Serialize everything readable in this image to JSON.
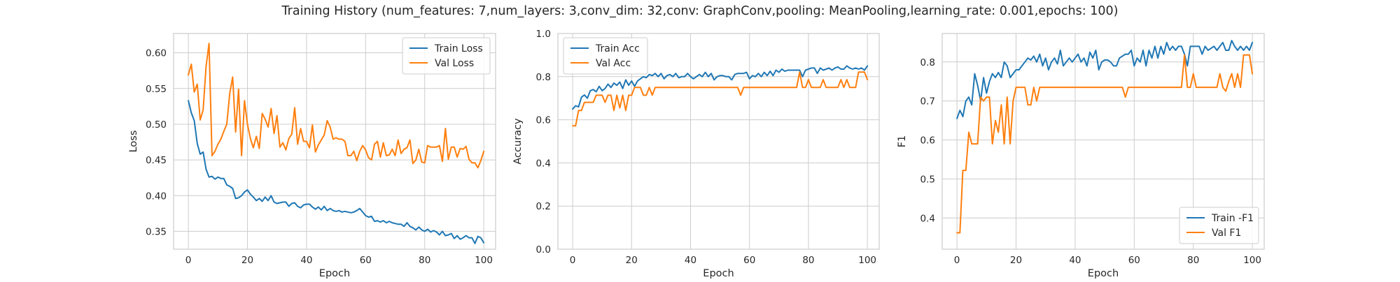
{
  "figure": {
    "title": "Training History (num_features: 7,num_layers: 3,conv_dim: 32,conv: GraphConv,pooling: MeanPooling,learning_rate: 0.001,epochs: 100)"
  },
  "colors": {
    "train": "#1f77b4",
    "val": "#ff7f0e",
    "grid": "#cccccc",
    "axes_edge": "#cccccc"
  },
  "chart_data": [
    {
      "type": "line",
      "xlabel": "Epoch",
      "ylabel": "Loss",
      "xlim": [
        -5,
        104
      ],
      "ylim": [
        0.325,
        0.627
      ],
      "xticks": [
        0,
        20,
        40,
        60,
        80,
        100
      ],
      "yticks": [
        0.35,
        0.4,
        0.45,
        0.5,
        0.55,
        0.6
      ],
      "ytick_labels": [
        "0.35",
        "0.40",
        "0.45",
        "0.50",
        "0.55",
        "0.60"
      ],
      "grid": true,
      "legend_loc": "upper-right",
      "series": [
        {
          "name": "Train Loss",
          "color": "#1f77b4",
          "values": [
            0.533,
            0.516,
            0.505,
            0.473,
            0.458,
            0.461,
            0.437,
            0.426,
            0.427,
            0.423,
            0.426,
            0.424,
            0.424,
            0.415,
            0.413,
            0.41,
            0.396,
            0.397,
            0.4,
            0.405,
            0.408,
            0.402,
            0.398,
            0.393,
            0.396,
            0.392,
            0.398,
            0.393,
            0.4,
            0.391,
            0.389,
            0.39,
            0.391,
            0.391,
            0.385,
            0.389,
            0.39,
            0.385,
            0.383,
            0.387,
            0.388,
            0.388,
            0.384,
            0.381,
            0.384,
            0.38,
            0.385,
            0.379,
            0.382,
            0.379,
            0.378,
            0.379,
            0.377,
            0.378,
            0.377,
            0.376,
            0.377,
            0.379,
            0.382,
            0.377,
            0.372,
            0.37,
            0.371,
            0.364,
            0.365,
            0.363,
            0.365,
            0.362,
            0.364,
            0.362,
            0.361,
            0.36,
            0.36,
            0.357,
            0.362,
            0.357,
            0.355,
            0.352,
            0.356,
            0.352,
            0.35,
            0.353,
            0.349,
            0.351,
            0.349,
            0.345,
            0.35,
            0.344,
            0.345,
            0.347,
            0.34,
            0.344,
            0.339,
            0.341,
            0.344,
            0.341,
            0.341,
            0.333,
            0.343,
            0.341,
            0.334
          ]
        },
        {
          "name": "Val Loss",
          "color": "#ff7f0e",
          "values": [
            0.569,
            0.584,
            0.545,
            0.556,
            0.506,
            0.52,
            0.581,
            0.613,
            0.456,
            0.462,
            0.472,
            0.479,
            0.49,
            0.5,
            0.543,
            0.566,
            0.489,
            0.549,
            0.456,
            0.533,
            0.5,
            0.48,
            0.467,
            0.483,
            0.466,
            0.515,
            0.507,
            0.496,
            0.522,
            0.487,
            0.512,
            0.468,
            0.474,
            0.464,
            0.48,
            0.486,
            0.523,
            0.472,
            0.494,
            0.476,
            0.476,
            0.467,
            0.499,
            0.461,
            0.471,
            0.478,
            0.485,
            0.505,
            0.496,
            0.479,
            0.481,
            0.479,
            0.479,
            0.476,
            0.456,
            0.456,
            0.462,
            0.449,
            0.462,
            0.47,
            0.464,
            0.453,
            0.45,
            0.472,
            0.476,
            0.454,
            0.474,
            0.456,
            0.457,
            0.465,
            0.456,
            0.478,
            0.459,
            0.465,
            0.467,
            0.478,
            0.445,
            0.45,
            0.465,
            0.447,
            0.446,
            0.47,
            0.468,
            0.468,
            0.468,
            0.47,
            0.448,
            0.494,
            0.451,
            0.468,
            0.468,
            0.454,
            0.466,
            0.465,
            0.469,
            0.451,
            0.446,
            0.446,
            0.439,
            0.449,
            0.462
          ]
        }
      ]
    },
    {
      "type": "line",
      "xlabel": "Epoch",
      "ylabel": "Accuracy",
      "xlim": [
        -5,
        104
      ],
      "ylim": [
        0.0,
        1.0
      ],
      "xticks": [
        0,
        20,
        40,
        60,
        80,
        100
      ],
      "yticks": [
        0.0,
        0.2,
        0.4,
        0.6,
        0.8,
        1.0
      ],
      "ytick_labels": [
        "0.0",
        "0.2",
        "0.4",
        "0.6",
        "0.8",
        "1.0"
      ],
      "grid": true,
      "legend_loc": "upper-left",
      "series": [
        {
          "name": "Train Acc",
          "color": "#1f77b4",
          "values": [
            0.65,
            0.665,
            0.66,
            0.705,
            0.715,
            0.7,
            0.735,
            0.74,
            0.73,
            0.755,
            0.735,
            0.745,
            0.765,
            0.75,
            0.77,
            0.76,
            0.775,
            0.745,
            0.785,
            0.76,
            0.78,
            0.755,
            0.78,
            0.79,
            0.8,
            0.795,
            0.81,
            0.805,
            0.815,
            0.8,
            0.815,
            0.79,
            0.805,
            0.81,
            0.8,
            0.815,
            0.795,
            0.8,
            0.8,
            0.815,
            0.8,
            0.79,
            0.8,
            0.81,
            0.8,
            0.82,
            0.8,
            0.815,
            0.785,
            0.8,
            0.805,
            0.805,
            0.8,
            0.8,
            0.785,
            0.81,
            0.815,
            0.815,
            0.815,
            0.82,
            0.79,
            0.805,
            0.8,
            0.815,
            0.8,
            0.82,
            0.805,
            0.825,
            0.805,
            0.83,
            0.82,
            0.835,
            0.825,
            0.83,
            0.83,
            0.83,
            0.83,
            0.83,
            0.8,
            0.83,
            0.835,
            0.84,
            0.84,
            0.815,
            0.84,
            0.83,
            0.835,
            0.84,
            0.83,
            0.84,
            0.845,
            0.835,
            0.835,
            0.85,
            0.84,
            0.835,
            0.84,
            0.835,
            0.84,
            0.83,
            0.85
          ]
        },
        {
          "name": "Val Acc",
          "color": "#ff7f0e",
          "values": [
            0.572,
            0.572,
            0.643,
            0.643,
            0.681,
            0.681,
            0.681,
            0.681,
            0.714,
            0.714,
            0.714,
            0.681,
            0.714,
            0.714,
            0.643,
            0.714,
            0.655,
            0.714,
            0.643,
            0.714,
            0.714,
            0.75,
            0.75,
            0.75,
            0.714,
            0.714,
            0.75,
            0.714,
            0.75,
            0.75,
            0.75,
            0.75,
            0.75,
            0.75,
            0.75,
            0.75,
            0.75,
            0.75,
            0.75,
            0.75,
            0.75,
            0.75,
            0.75,
            0.75,
            0.75,
            0.75,
            0.75,
            0.75,
            0.75,
            0.75,
            0.75,
            0.75,
            0.75,
            0.75,
            0.75,
            0.75,
            0.75,
            0.714,
            0.75,
            0.75,
            0.75,
            0.75,
            0.75,
            0.75,
            0.75,
            0.75,
            0.75,
            0.75,
            0.75,
            0.75,
            0.75,
            0.75,
            0.75,
            0.75,
            0.75,
            0.75,
            0.75,
            0.821,
            0.75,
            0.75,
            0.786,
            0.75,
            0.75,
            0.75,
            0.75,
            0.786,
            0.75,
            0.75,
            0.75,
            0.75,
            0.75,
            0.786,
            0.75,
            0.786,
            0.75,
            0.75,
            0.75,
            0.821,
            0.821,
            0.821,
            0.786
          ]
        }
      ]
    },
    {
      "type": "line",
      "xlabel": "Epoch",
      "ylabel": "F1",
      "xlim": [
        -5,
        104
      ],
      "ylim": [
        0.32,
        0.873
      ],
      "xticks": [
        0,
        20,
        40,
        60,
        80,
        100
      ],
      "yticks": [
        0.4,
        0.5,
        0.6,
        0.7,
        0.8
      ],
      "ytick_labels": [
        "0.4",
        "0.5",
        "0.6",
        "0.7",
        "0.8"
      ],
      "grid": true,
      "legend_loc": "lower-right",
      "series": [
        {
          "name": "Train -F1",
          "color": "#1f77b4",
          "values": [
            0.655,
            0.676,
            0.66,
            0.7,
            0.71,
            0.69,
            0.77,
            0.74,
            0.7,
            0.76,
            0.72,
            0.75,
            0.77,
            0.76,
            0.773,
            0.76,
            0.8,
            0.79,
            0.76,
            0.77,
            0.78,
            0.78,
            0.79,
            0.8,
            0.81,
            0.805,
            0.815,
            0.8,
            0.82,
            0.79,
            0.81,
            0.78,
            0.8,
            0.81,
            0.795,
            0.83,
            0.79,
            0.8,
            0.81,
            0.8,
            0.81,
            0.82,
            0.8,
            0.81,
            0.79,
            0.825,
            0.81,
            0.83,
            0.78,
            0.8,
            0.805,
            0.805,
            0.8,
            0.79,
            0.79,
            0.81,
            0.815,
            0.82,
            0.82,
            0.83,
            0.79,
            0.81,
            0.8,
            0.83,
            0.79,
            0.83,
            0.81,
            0.84,
            0.81,
            0.84,
            0.82,
            0.85,
            0.83,
            0.84,
            0.83,
            0.84,
            0.84,
            0.82,
            0.79,
            0.84,
            0.84,
            0.84,
            0.84,
            0.82,
            0.84,
            0.83,
            0.835,
            0.84,
            0.83,
            0.84,
            0.85,
            0.83,
            0.83,
            0.855,
            0.84,
            0.83,
            0.84,
            0.83,
            0.84,
            0.83,
            0.85
          ]
        },
        {
          "name": "Val F1",
          "color": "#ff7f0e",
          "values": [
            0.362,
            0.362,
            0.522,
            0.522,
            0.62,
            0.59,
            0.59,
            0.59,
            0.71,
            0.7,
            0.71,
            0.71,
            0.59,
            0.65,
            0.62,
            0.69,
            0.59,
            0.71,
            0.59,
            0.7,
            0.735,
            0.735,
            0.735,
            0.735,
            0.69,
            0.69,
            0.735,
            0.7,
            0.735,
            0.735,
            0.735,
            0.735,
            0.735,
            0.735,
            0.735,
            0.735,
            0.735,
            0.735,
            0.735,
            0.735,
            0.735,
            0.735,
            0.735,
            0.735,
            0.735,
            0.735,
            0.735,
            0.735,
            0.735,
            0.735,
            0.735,
            0.735,
            0.735,
            0.735,
            0.735,
            0.735,
            0.735,
            0.71,
            0.735,
            0.735,
            0.735,
            0.735,
            0.735,
            0.735,
            0.735,
            0.735,
            0.735,
            0.735,
            0.735,
            0.735,
            0.735,
            0.735,
            0.735,
            0.735,
            0.735,
            0.735,
            0.735,
            0.818,
            0.735,
            0.735,
            0.77,
            0.735,
            0.735,
            0.735,
            0.735,
            0.735,
            0.735,
            0.735,
            0.735,
            0.77,
            0.735,
            0.725,
            0.75,
            0.77,
            0.735,
            0.77,
            0.735,
            0.818,
            0.818,
            0.818,
            0.77
          ]
        }
      ]
    }
  ]
}
